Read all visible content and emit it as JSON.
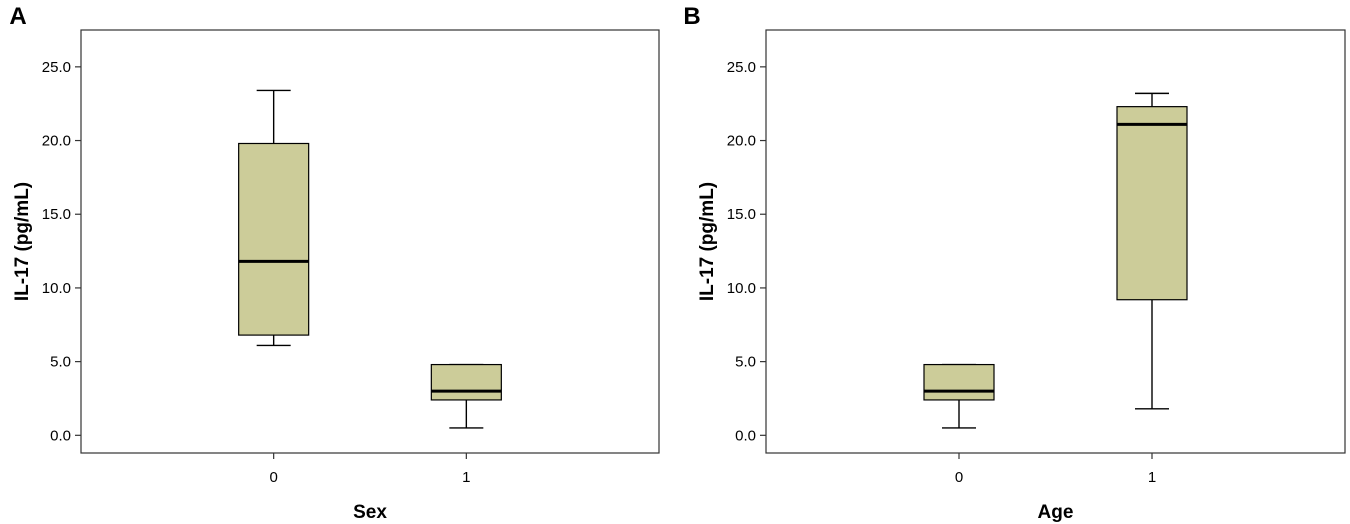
{
  "chart_data": [
    {
      "type": "boxplot",
      "panel_label": "A",
      "xlabel": "Sex",
      "ylabel": "IL-17 (pg/mL)",
      "ylim": [
        -1.2,
        27.5
      ],
      "yticks": [
        0,
        5,
        10,
        15,
        20,
        25
      ],
      "ytick_labels": [
        "0.0",
        "5.0",
        "10.0",
        "15.0",
        "20.0",
        "25.0"
      ],
      "categories": [
        "0",
        "1"
      ],
      "box_color": "#CCCC99",
      "boxes": [
        {
          "category": "0",
          "min": 6.1,
          "q1": 6.8,
          "median": 11.8,
          "q3": 19.8,
          "max": 23.4
        },
        {
          "category": "1",
          "min": 0.5,
          "q1": 2.4,
          "median": 3.0,
          "q3": 4.8,
          "max": 4.8
        }
      ]
    },
    {
      "type": "boxplot",
      "panel_label": "B",
      "xlabel": "Age",
      "ylabel": "IL-17 (pg/mL)",
      "ylim": [
        -1.2,
        27.5
      ],
      "yticks": [
        0,
        5,
        10,
        15,
        20,
        25
      ],
      "ytick_labels": [
        "0.0",
        "5.0",
        "10.0",
        "15.0",
        "20.0",
        "25.0"
      ],
      "categories": [
        "0",
        "1"
      ],
      "box_color": "#CCCC99",
      "boxes": [
        {
          "category": "0",
          "min": 0.5,
          "q1": 2.4,
          "median": 3.0,
          "q3": 4.8,
          "max": 4.8
        },
        {
          "category": "1",
          "min": 1.8,
          "q1": 9.2,
          "median": 21.1,
          "q3": 22.3,
          "max": 23.2
        }
      ]
    }
  ]
}
